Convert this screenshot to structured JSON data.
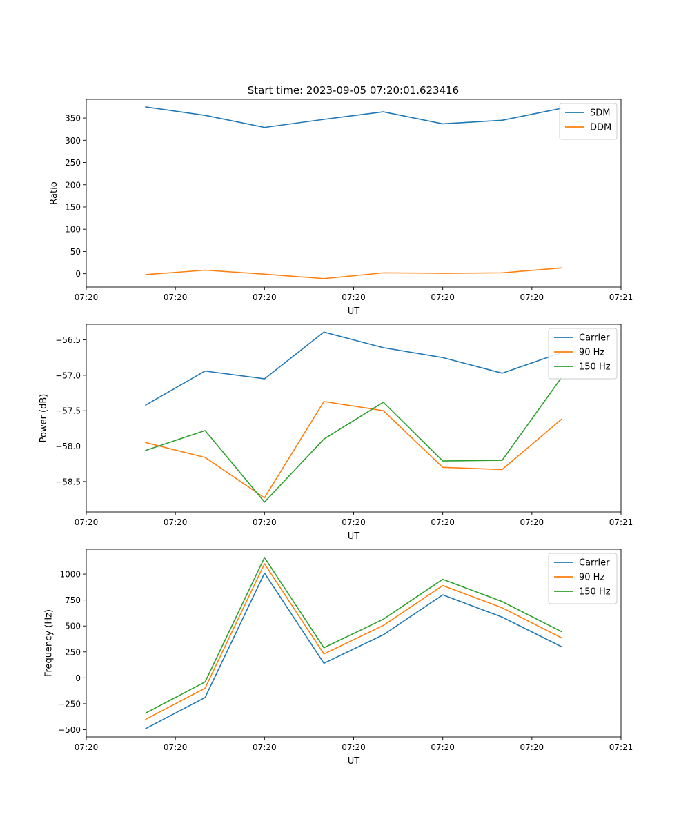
{
  "figure_title": "Start time: 2023-09-05 07:20:01.623416",
  "chart_data": [
    {
      "type": "line",
      "title": "Start time: 2023-09-05 07:20:01.623416",
      "xlabel": "UT",
      "ylabel": "Ratio",
      "x": [
        1,
        2,
        3,
        4,
        5,
        6,
        7,
        8
      ],
      "xlim": [
        0,
        9
      ],
      "x_ticks": [
        0,
        1.5,
        3,
        4.5,
        6,
        7.5,
        9
      ],
      "x_tick_labels": [
        "07:20",
        "07:20",
        "07:20",
        "07:20",
        "07:20",
        "07:20",
        "07:21"
      ],
      "ylim": [
        -30,
        392
      ],
      "y_ticks": [
        0,
        50,
        100,
        150,
        200,
        250,
        300,
        350
      ],
      "y_tick_labels": [
        "0",
        "50",
        "100",
        "150",
        "200",
        "250",
        "300",
        "350"
      ],
      "legend_position": "top-right",
      "grid": false,
      "series": [
        {
          "name": "SDM",
          "color": "#1f77b4",
          "values": [
            375,
            356,
            329,
            347,
            364,
            337,
            345,
            372
          ]
        },
        {
          "name": "DDM",
          "color": "#ff7f0e",
          "values": [
            -2,
            8,
            -1,
            -11,
            2,
            1,
            2,
            13
          ]
        }
      ]
    },
    {
      "type": "line",
      "title": "",
      "xlabel": "UT",
      "ylabel": "Power (dB)",
      "x": [
        1,
        2,
        3,
        4,
        5,
        6,
        7,
        8
      ],
      "xlim": [
        0,
        9
      ],
      "x_ticks": [
        0,
        1.5,
        3,
        4.5,
        6,
        7.5,
        9
      ],
      "x_tick_labels": [
        "07:20",
        "07:20",
        "07:20",
        "07:20",
        "07:20",
        "07:20",
        "07:21"
      ],
      "ylim": [
        -58.93,
        -56.28
      ],
      "y_ticks": [
        -58.5,
        -58.0,
        -57.5,
        -57.0,
        -56.5
      ],
      "y_tick_labels": [
        "−58.5",
        "−58.0",
        "−57.5",
        "−57.0",
        "−56.5"
      ],
      "legend_position": "top-right",
      "grid": false,
      "series": [
        {
          "name": "Carrier",
          "color": "#1f77b4",
          "values": [
            -57.42,
            -56.94,
            -57.05,
            -56.39,
            -56.61,
            -56.75,
            -56.97,
            -56.68
          ]
        },
        {
          "name": "90 Hz",
          "color": "#ff7f0e",
          "values": [
            -57.95,
            -58.16,
            -58.73,
            -57.37,
            -57.5,
            -58.3,
            -58.33,
            -57.62
          ]
        },
        {
          "name": "150 Hz",
          "color": "#2ca02c",
          "values": [
            -58.06,
            -57.78,
            -58.79,
            -57.9,
            -57.38,
            -58.21,
            -58.2,
            -57.03
          ]
        }
      ]
    },
    {
      "type": "line",
      "title": "",
      "xlabel": "UT",
      "ylabel": "Frequency (Hz)",
      "x": [
        1,
        2,
        3,
        4,
        5,
        6,
        7,
        8
      ],
      "xlim": [
        0,
        9
      ],
      "x_ticks": [
        0,
        1.5,
        3,
        4.5,
        6,
        7.5,
        9
      ],
      "x_tick_labels": [
        "07:20",
        "07:20",
        "07:20",
        "07:20",
        "07:20",
        "07:20",
        "07:21"
      ],
      "ylim": [
        -570,
        1240
      ],
      "y_ticks": [
        -500,
        -250,
        0,
        250,
        500,
        750,
        1000
      ],
      "y_tick_labels": [
        "−500",
        "−250",
        "0",
        "250",
        "500",
        "750",
        "1000"
      ],
      "legend_position": "top-right",
      "grid": false,
      "series": [
        {
          "name": "Carrier",
          "color": "#1f77b4",
          "values": [
            -490,
            -190,
            1010,
            140,
            415,
            800,
            585,
            300
          ]
        },
        {
          "name": "90 Hz",
          "color": "#ff7f0e",
          "values": [
            -400,
            -100,
            1100,
            230,
            505,
            890,
            675,
            385
          ]
        },
        {
          "name": "150 Hz",
          "color": "#2ca02c",
          "values": [
            -340,
            -40,
            1160,
            290,
            565,
            950,
            735,
            445
          ]
        }
      ]
    }
  ]
}
